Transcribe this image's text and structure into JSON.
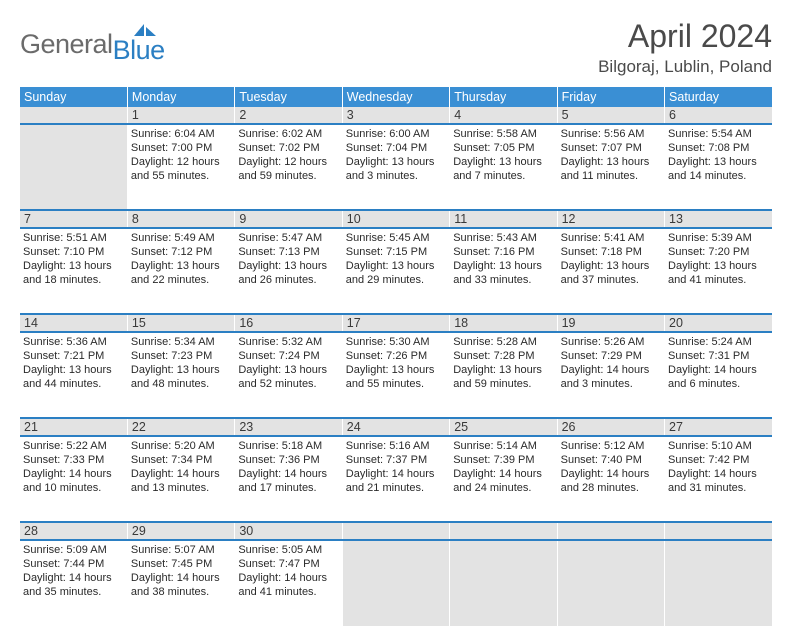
{
  "logo": {
    "gray_text": "General",
    "blue_text": "Blue",
    "sail_color": "#2b7fc3"
  },
  "header": {
    "title": "April 2024",
    "location": "Bilgoraj, Lublin, Poland"
  },
  "calendar": {
    "type": "table",
    "columns": [
      "Sunday",
      "Monday",
      "Tuesday",
      "Wednesday",
      "Thursday",
      "Friday",
      "Saturday"
    ],
    "header_bg": "#3a8fd4",
    "header_fg": "#ffffff",
    "daynum_bg": "#e3e3e3",
    "row_border_color": "#2b7fc3",
    "text_color": "#2a2a2a",
    "font_size_body": 11,
    "font_size_header": 12.5,
    "weeks": [
      {
        "nums": [
          "",
          "1",
          "2",
          "3",
          "4",
          "5",
          "6"
        ],
        "cells": [
          null,
          {
            "sunrise": "6:04 AM",
            "sunset": "7:00 PM",
            "daylight": "12 hours and 55 minutes."
          },
          {
            "sunrise": "6:02 AM",
            "sunset": "7:02 PM",
            "daylight": "12 hours and 59 minutes."
          },
          {
            "sunrise": "6:00 AM",
            "sunset": "7:04 PM",
            "daylight": "13 hours and 3 minutes."
          },
          {
            "sunrise": "5:58 AM",
            "sunset": "7:05 PM",
            "daylight": "13 hours and 7 minutes."
          },
          {
            "sunrise": "5:56 AM",
            "sunset": "7:07 PM",
            "daylight": "13 hours and 11 minutes."
          },
          {
            "sunrise": "5:54 AM",
            "sunset": "7:08 PM",
            "daylight": "13 hours and 14 minutes."
          }
        ]
      },
      {
        "nums": [
          "7",
          "8",
          "9",
          "10",
          "11",
          "12",
          "13"
        ],
        "cells": [
          {
            "sunrise": "5:51 AM",
            "sunset": "7:10 PM",
            "daylight": "13 hours and 18 minutes."
          },
          {
            "sunrise": "5:49 AM",
            "sunset": "7:12 PM",
            "daylight": "13 hours and 22 minutes."
          },
          {
            "sunrise": "5:47 AM",
            "sunset": "7:13 PM",
            "daylight": "13 hours and 26 minutes."
          },
          {
            "sunrise": "5:45 AM",
            "sunset": "7:15 PM",
            "daylight": "13 hours and 29 minutes."
          },
          {
            "sunrise": "5:43 AM",
            "sunset": "7:16 PM",
            "daylight": "13 hours and 33 minutes."
          },
          {
            "sunrise": "5:41 AM",
            "sunset": "7:18 PM",
            "daylight": "13 hours and 37 minutes."
          },
          {
            "sunrise": "5:39 AM",
            "sunset": "7:20 PM",
            "daylight": "13 hours and 41 minutes."
          }
        ]
      },
      {
        "nums": [
          "14",
          "15",
          "16",
          "17",
          "18",
          "19",
          "20"
        ],
        "cells": [
          {
            "sunrise": "5:36 AM",
            "sunset": "7:21 PM",
            "daylight": "13 hours and 44 minutes."
          },
          {
            "sunrise": "5:34 AM",
            "sunset": "7:23 PM",
            "daylight": "13 hours and 48 minutes."
          },
          {
            "sunrise": "5:32 AM",
            "sunset": "7:24 PM",
            "daylight": "13 hours and 52 minutes."
          },
          {
            "sunrise": "5:30 AM",
            "sunset": "7:26 PM",
            "daylight": "13 hours and 55 minutes."
          },
          {
            "sunrise": "5:28 AM",
            "sunset": "7:28 PM",
            "daylight": "13 hours and 59 minutes."
          },
          {
            "sunrise": "5:26 AM",
            "sunset": "7:29 PM",
            "daylight": "14 hours and 3 minutes."
          },
          {
            "sunrise": "5:24 AM",
            "sunset": "7:31 PM",
            "daylight": "14 hours and 6 minutes."
          }
        ]
      },
      {
        "nums": [
          "21",
          "22",
          "23",
          "24",
          "25",
          "26",
          "27"
        ],
        "cells": [
          {
            "sunrise": "5:22 AM",
            "sunset": "7:33 PM",
            "daylight": "14 hours and 10 minutes."
          },
          {
            "sunrise": "5:20 AM",
            "sunset": "7:34 PM",
            "daylight": "14 hours and 13 minutes."
          },
          {
            "sunrise": "5:18 AM",
            "sunset": "7:36 PM",
            "daylight": "14 hours and 17 minutes."
          },
          {
            "sunrise": "5:16 AM",
            "sunset": "7:37 PM",
            "daylight": "14 hours and 21 minutes."
          },
          {
            "sunrise": "5:14 AM",
            "sunset": "7:39 PM",
            "daylight": "14 hours and 24 minutes."
          },
          {
            "sunrise": "5:12 AM",
            "sunset": "7:40 PM",
            "daylight": "14 hours and 28 minutes."
          },
          {
            "sunrise": "5:10 AM",
            "sunset": "7:42 PM",
            "daylight": "14 hours and 31 minutes."
          }
        ]
      },
      {
        "nums": [
          "28",
          "29",
          "30",
          "",
          "",
          "",
          ""
        ],
        "cells": [
          {
            "sunrise": "5:09 AM",
            "sunset": "7:44 PM",
            "daylight": "14 hours and 35 minutes."
          },
          {
            "sunrise": "5:07 AM",
            "sunset": "7:45 PM",
            "daylight": "14 hours and 38 minutes."
          },
          {
            "sunrise": "5:05 AM",
            "sunset": "7:47 PM",
            "daylight": "14 hours and 41 minutes."
          },
          null,
          null,
          null,
          null
        ]
      }
    ]
  },
  "labels": {
    "sunrise": "Sunrise:",
    "sunset": "Sunset:",
    "daylight": "Daylight:"
  }
}
